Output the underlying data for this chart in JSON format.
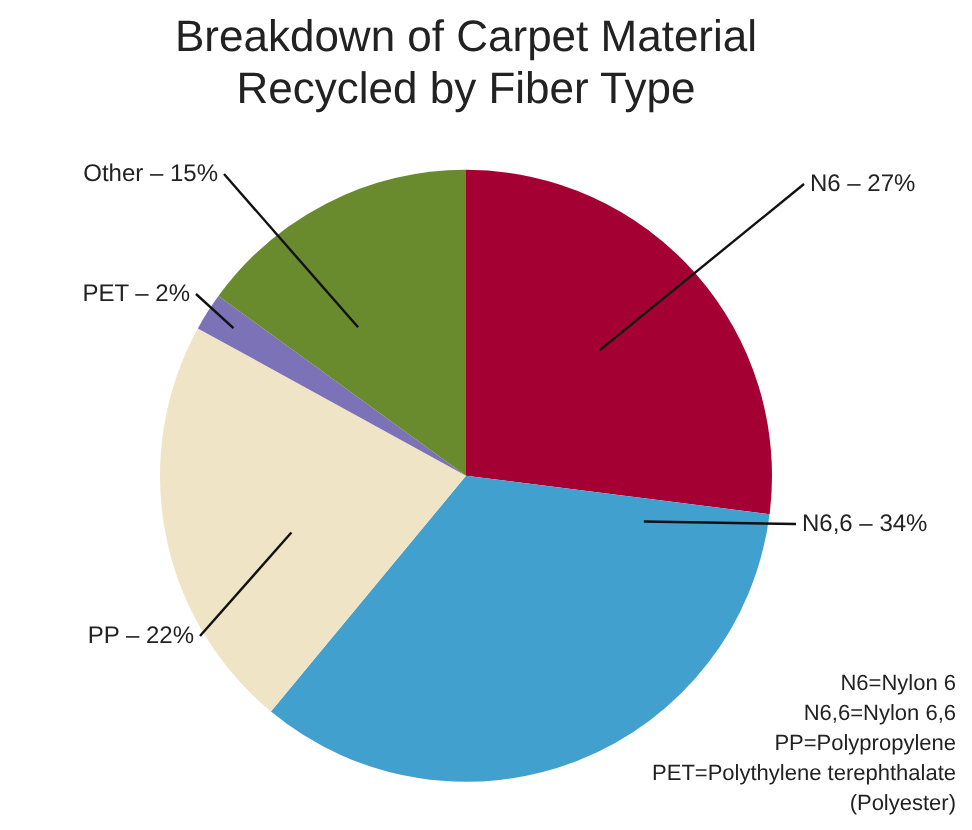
{
  "chart_data": {
    "type": "pie",
    "title": "Breakdown of Carpet Material\nRecycled by Fiber Type",
    "categories": [
      "N6 – 27%",
      "N6,6 – 34%",
      "PP – 22%",
      "PET – 2%",
      "Other – 15%"
    ],
    "values": [
      27,
      34,
      22,
      2,
      15
    ],
    "colors": [
      "#a50034",
      "#42a0cf",
      "#efe4c5",
      "#7b72b8",
      "#6a8a2e"
    ],
    "legend": false,
    "annotations": [
      "N6=Nylon 6",
      "N6,6=Nylon 6,6",
      "PP=Polypropylene",
      "PET=Polythylene terephthalate",
      "(Polyester)"
    ]
  }
}
